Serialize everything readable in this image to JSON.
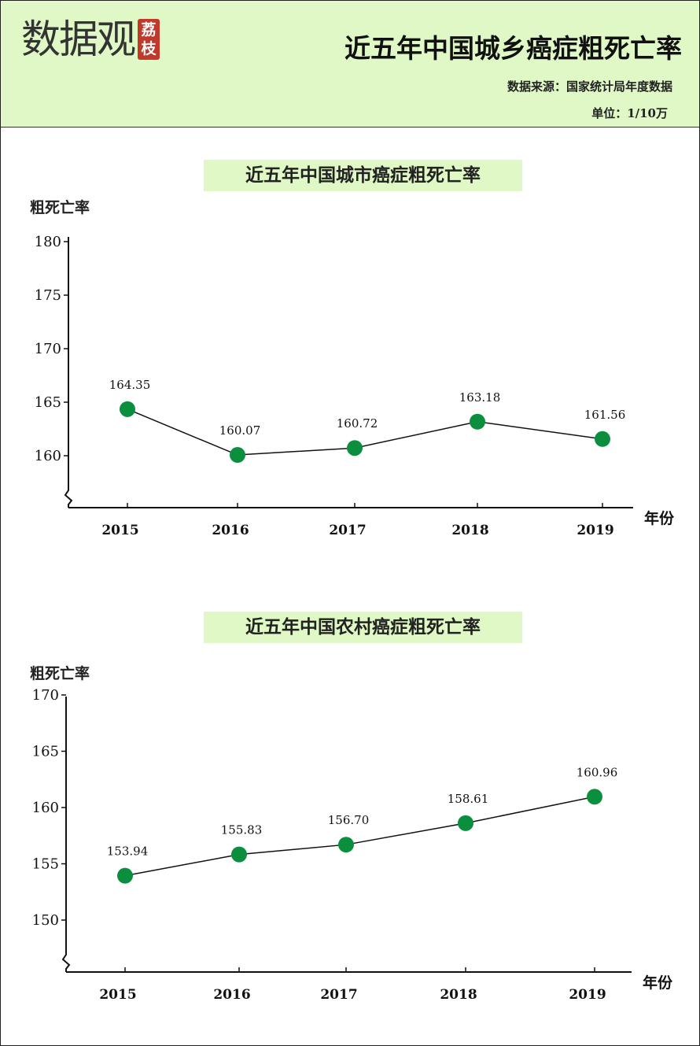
{
  "header": {
    "logo_text": "数据观",
    "logo_badge": [
      "荔",
      "枝"
    ],
    "title": "近五年中国城乡癌症粗死亡率",
    "source": "数据来源：国家统计局年度数据",
    "unit": "单位：1/10万"
  },
  "colors": {
    "header_bg": "#dff8c6",
    "marker": "#0b8f3f",
    "line": "#111111"
  },
  "chart_data": [
    {
      "type": "line",
      "title": "近五年中国城市癌症粗死亡率",
      "ylabel": "粗死亡率",
      "xlabel": "年份",
      "categories": [
        "2015",
        "2016",
        "2017",
        "2018",
        "2019"
      ],
      "values": [
        164.35,
        160.07,
        160.72,
        163.18,
        161.56
      ],
      "y_ticks": [
        160,
        165,
        170,
        175,
        180
      ],
      "ylim": [
        156,
        181
      ],
      "axis_break": true,
      "grid": false
    },
    {
      "type": "line",
      "title": "近五年中国农村癌症粗死亡率",
      "ylabel": "粗死亡率",
      "xlabel": "年份",
      "categories": [
        "2015",
        "2016",
        "2017",
        "2018",
        "2019"
      ],
      "values": [
        153.94,
        155.83,
        156.7,
        158.61,
        160.96
      ],
      "y_ticks": [
        150,
        155,
        160,
        165,
        170
      ],
      "ylim": [
        146,
        171
      ],
      "axis_break": true,
      "grid": false
    }
  ]
}
